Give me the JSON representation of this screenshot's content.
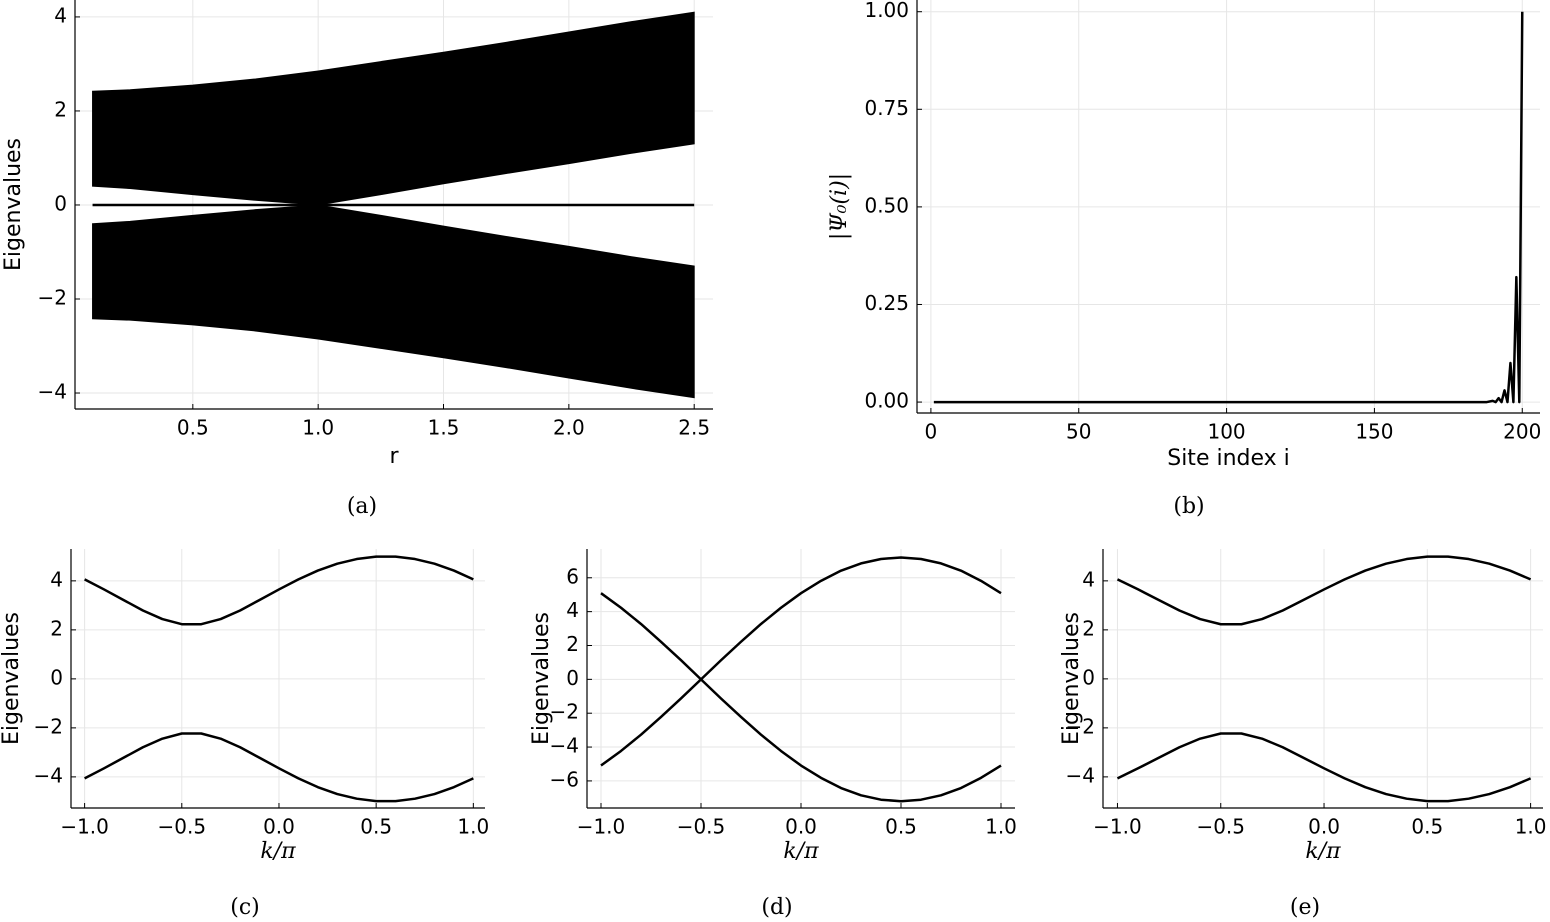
{
  "chart_data": [
    {
      "type": "band",
      "caption": "(a)",
      "xlabel": "r",
      "ylabel": "Eigenvalues",
      "x": [
        0.1,
        0.25,
        0.5,
        0.75,
        1.0,
        1.25,
        1.5,
        1.75,
        2.0,
        2.25,
        2.5
      ],
      "series": [
        {
          "color": "#000000",
          "low": [
            0.4,
            0.35,
            0.22,
            0.1,
            0.0,
            0.22,
            0.45,
            0.67,
            0.88,
            1.1,
            1.3
          ],
          "high": [
            2.42,
            2.45,
            2.55,
            2.68,
            2.85,
            3.05,
            3.25,
            3.46,
            3.68,
            3.9,
            4.1
          ]
        },
        {
          "color": "#000000",
          "low": [
            -2.42,
            -2.45,
            -2.55,
            -2.68,
            -2.85,
            -3.05,
            -3.25,
            -3.46,
            -3.68,
            -3.9,
            -4.1
          ],
          "high": [
            -0.4,
            -0.35,
            -0.22,
            -0.1,
            0.0,
            -0.22,
            -0.45,
            -0.67,
            -0.88,
            -1.1,
            -1.3
          ]
        },
        {
          "color": "#000000",
          "values": [
            0,
            0,
            0,
            0,
            0,
            0,
            0,
            0,
            0,
            0,
            0
          ]
        }
      ],
      "xlim": [
        0.03,
        2.575
      ],
      "xticks": [
        0.5,
        {
          "value": 1,
          "label": "1.0"
        },
        1.5,
        {
          "value": 2,
          "label": "2.0"
        },
        2.5
      ],
      "ylim": [
        -4.34,
        4.36
      ],
      "yticks": [
        {
          "value": -4,
          "label": "−4"
        },
        {
          "value": -2,
          "label": "−2"
        },
        0,
        2,
        4
      ],
      "grid": true
    },
    {
      "type": "line",
      "caption": "(b)",
      "xlabel": "Site index i",
      "ylabel": "|Ψ₀(i)|",
      "x": [
        1,
        188,
        190,
        191,
        192,
        193,
        194,
        195,
        196,
        197,
        198,
        199,
        200
      ],
      "series": [
        {
          "color": "#000000",
          "values": [
            0,
            0,
            0.003,
            0,
            0.01,
            0,
            0.03,
            0,
            0.1,
            0,
            0.32,
            0,
            1.0
          ]
        }
      ],
      "xlim": [
        -4.7,
        206
      ],
      "xticks": [
        0,
        50,
        100,
        150,
        200
      ],
      "ylim": [
        -0.028,
        1.03
      ],
      "yticks": [
        {
          "value": 0,
          "label": "0.00"
        },
        {
          "value": 0.25,
          "label": "0.25"
        },
        {
          "value": 0.5,
          "label": "0.50"
        },
        {
          "value": 0.75,
          "label": "0.75"
        },
        {
          "value": 1,
          "label": "1.00"
        }
      ],
      "grid": true
    },
    {
      "type": "line",
      "caption": "(c)",
      "xlabel": "k/π",
      "ylabel": "Eigenvalues",
      "x": [
        -1,
        -0.9,
        -0.8,
        -0.7,
        -0.6,
        -0.5,
        -0.4,
        -0.3,
        -0.2,
        -0.1,
        0,
        0.1,
        0.2,
        0.3,
        0.4,
        0.5,
        0.6,
        0.7,
        0.8,
        0.9,
        1
      ],
      "series": [
        {
          "color": "#000000",
          "values": [
            4.06,
            3.65,
            3.22,
            2.79,
            2.44,
            2.23,
            2.23,
            2.44,
            2.79,
            3.22,
            3.65,
            4.06,
            4.42,
            4.7,
            4.89,
            4.99,
            4.99,
            4.89,
            4.7,
            4.42,
            4.06
          ]
        },
        {
          "color": "#000000",
          "values": [
            -4.06,
            -3.65,
            -3.22,
            -2.79,
            -2.44,
            -2.23,
            -2.23,
            -2.44,
            -2.79,
            -3.22,
            -3.65,
            -4.06,
            -4.42,
            -4.7,
            -4.89,
            -4.99,
            -4.99,
            -4.89,
            -4.7,
            -4.42,
            -4.06
          ]
        }
      ],
      "xlim": [
        -1.07,
        1.06
      ],
      "xticks": [
        {
          "value": -1,
          "label": "−1.0"
        },
        {
          "value": -0.5,
          "label": "−0.5"
        },
        {
          "value": 0,
          "label": "0.0"
        },
        0.5,
        {
          "value": 1,
          "label": "1.0"
        }
      ],
      "ylim": [
        -5.27,
        5.3
      ],
      "yticks": [
        {
          "value": -4,
          "label": "−4"
        },
        {
          "value": -2,
          "label": "−2"
        },
        0,
        2,
        4
      ],
      "grid": true
    },
    {
      "type": "line",
      "caption": "(d)",
      "xlabel": "k/π",
      "ylabel": "Eigenvalues",
      "x": [
        -1,
        -0.9,
        -0.8,
        -0.7,
        -0.6,
        -0.5,
        -0.4,
        -0.3,
        -0.2,
        -0.1,
        0,
        0.1,
        0.2,
        0.3,
        0.4,
        0.5,
        0.6,
        0.7,
        0.8,
        0.9,
        1
      ],
      "series": [
        {
          "color": "#000000",
          "values": [
            -5.09,
            -4.23,
            -3.27,
            -2.22,
            -1.13,
            0,
            1.13,
            2.22,
            3.27,
            4.23,
            5.09,
            5.82,
            6.42,
            6.85,
            7.11,
            7.2,
            7.11,
            6.85,
            6.42,
            5.82,
            5.09
          ]
        },
        {
          "color": "#000000",
          "values": [
            5.09,
            4.23,
            3.27,
            2.22,
            1.13,
            0,
            -1.13,
            -2.22,
            -3.27,
            -4.23,
            -5.09,
            -5.82,
            -6.42,
            -6.85,
            -7.11,
            -7.2,
            -7.11,
            -6.85,
            -6.42,
            -5.82,
            -5.09
          ]
        }
      ],
      "xlim": [
        -1.07,
        1.07
      ],
      "xticks": [
        {
          "value": -1,
          "label": "−1.0"
        },
        {
          "value": -0.5,
          "label": "−0.5"
        },
        {
          "value": 0,
          "label": "0.0"
        },
        0.5,
        {
          "value": 1,
          "label": "1.0"
        }
      ],
      "ylim": [
        -7.6,
        7.7
      ],
      "yticks": [
        {
          "value": -6,
          "label": "−6"
        },
        {
          "value": -4,
          "label": "−4"
        },
        {
          "value": -2,
          "label": "−2"
        },
        0,
        2,
        4,
        6
      ],
      "grid": true
    },
    {
      "type": "line",
      "caption": "(e)",
      "xlabel": "k/π",
      "ylabel": "Eigenvalues",
      "x": [
        -1,
        -0.9,
        -0.8,
        -0.7,
        -0.6,
        -0.5,
        -0.4,
        -0.3,
        -0.2,
        -0.1,
        0,
        0.1,
        0.2,
        0.3,
        0.4,
        0.5,
        0.6,
        0.7,
        0.8,
        0.9,
        1
      ],
      "series": [
        {
          "color": "#000000",
          "values": [
            4.06,
            3.65,
            3.22,
            2.79,
            2.44,
            2.23,
            2.23,
            2.44,
            2.79,
            3.22,
            3.65,
            4.06,
            4.42,
            4.7,
            4.89,
            4.99,
            4.99,
            4.89,
            4.7,
            4.42,
            4.06
          ]
        },
        {
          "color": "#000000",
          "values": [
            -4.06,
            -3.65,
            -3.22,
            -2.79,
            -2.44,
            -2.23,
            -2.23,
            -2.44,
            -2.79,
            -3.22,
            -3.65,
            -4.06,
            -4.42,
            -4.7,
            -4.89,
            -4.99,
            -4.99,
            -4.89,
            -4.7,
            -4.42,
            -4.06
          ]
        }
      ],
      "xlim": [
        -1.07,
        1.06
      ],
      "xticks": [
        {
          "value": -1,
          "label": "−1.0"
        },
        {
          "value": -0.5,
          "label": "−0.5"
        },
        {
          "value": 0,
          "label": "0.0"
        },
        0.5,
        {
          "value": 1,
          "label": "1.0"
        }
      ],
      "ylim": [
        -5.27,
        5.3
      ],
      "yticks": [
        {
          "value": -4,
          "label": "−4"
        },
        {
          "value": -2,
          "label": "−2"
        },
        0,
        2,
        4
      ],
      "grid": true
    }
  ]
}
